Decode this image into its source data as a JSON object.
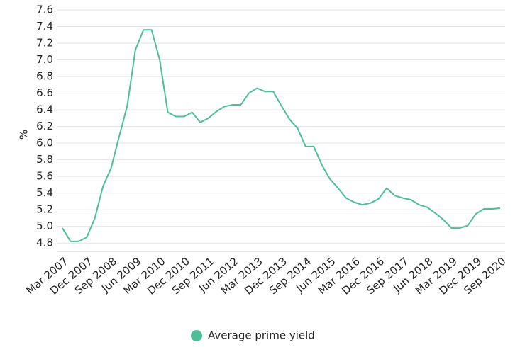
{
  "chart_data": {
    "type": "line",
    "y_label": "%",
    "categories": [
      "Mar 2007",
      null,
      null,
      "Dec 2007",
      null,
      null,
      "Sep 2008",
      null,
      null,
      "Jun 2009",
      null,
      null,
      "Mar 2010",
      null,
      null,
      "Dec 2010",
      null,
      null,
      "Sep 2011",
      null,
      null,
      "Jun 2012",
      null,
      null,
      "Mar 2013",
      null,
      null,
      "Dec 2013",
      null,
      null,
      "Sep 2014",
      null,
      null,
      "Jun 2015",
      null,
      null,
      "Mar 2016",
      null,
      null,
      "Dec 2016",
      null,
      null,
      "Sep 2017",
      null,
      null,
      "Jun 2018",
      null,
      null,
      "Mar 2019",
      null,
      null,
      "Dec 2019",
      null,
      null,
      "Sep 2020"
    ],
    "series": [
      {
        "name": "Average prime yield",
        "color": "#4dbf94",
        "values": [
          4.98,
          4.82,
          4.82,
          4.87,
          5.1,
          5.48,
          5.7,
          6.08,
          6.45,
          7.12,
          7.36,
          7.36,
          7.0,
          6.37,
          6.32,
          6.32,
          6.37,
          6.25,
          6.3,
          6.38,
          6.44,
          6.46,
          6.46,
          6.6,
          6.66,
          6.62,
          6.62,
          6.45,
          6.29,
          6.18,
          5.96,
          5.96,
          5.74,
          5.57,
          5.46,
          5.34,
          5.29,
          5.26,
          5.28,
          5.33,
          5.46,
          5.37,
          5.34,
          5.32,
          5.26,
          5.23,
          5.16,
          5.08,
          4.98,
          4.98,
          5.01,
          5.15,
          5.21,
          5.21,
          5.22
        ]
      }
    ],
    "ylim": [
      4.7,
      7.6
    ],
    "yticks": [
      4.8,
      {
        "value": 5.0,
        "label": "5.0"
      },
      5.2,
      5.4,
      5.6,
      5.8,
      {
        "value": 6.0,
        "label": "6.0"
      },
      6.2,
      6.4,
      6.6,
      6.8,
      {
        "value": 7.0,
        "label": "7.0"
      },
      7.2,
      7.4,
      7.6
    ],
    "grid": true
  }
}
